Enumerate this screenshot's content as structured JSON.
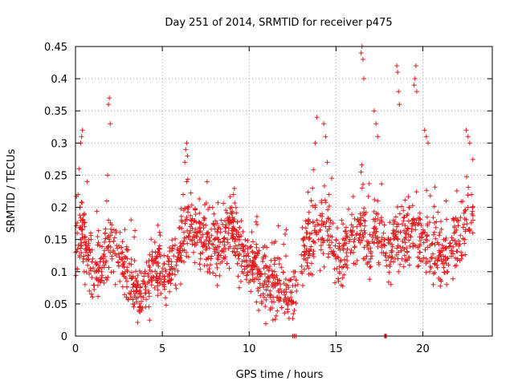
{
  "chart_data": {
    "type": "scatter",
    "title": "Day 251 of 2014, SRMTID for receiver p475",
    "xlabel": "GPS time / hours",
    "ylabel": "SRMTID / TECUs",
    "xlim": [
      0,
      24
    ],
    "ylim": [
      0,
      0.45
    ],
    "xticks": [
      0,
      5,
      10,
      15,
      20
    ],
    "xtick_labels": [
      "0",
      "5",
      "10",
      "15",
      "20"
    ],
    "yticks": [
      0,
      0.05,
      0.1,
      0.15,
      0.2,
      0.25,
      0.3,
      0.35,
      0.4,
      0.45
    ],
    "ytick_labels": [
      "0",
      "0.05",
      "0.1",
      "0.15",
      "0.2",
      "0.25",
      "0.3",
      "0.35",
      "0.4",
      "0.45"
    ],
    "grid": true,
    "marker": "+",
    "color": "#e41a1c",
    "series": [
      {
        "name": "SRMTID",
        "x": [
          0.0,
          0.1,
          0.15,
          0.2,
          0.25,
          0.3,
          0.35,
          0.4,
          0.45,
          0.5,
          0.55,
          0.6,
          0.7,
          0.8,
          0.9,
          1.0,
          1.1,
          1.2,
          1.3,
          1.4,
          1.5,
          1.6,
          1.7,
          1.8,
          1.85,
          1.9,
          2.0,
          2.1,
          2.2,
          2.3,
          2.5,
          2.7,
          2.9,
          3.0,
          3.2,
          3.4,
          3.5,
          3.6,
          3.7,
          3.8,
          3.9,
          4.0,
          4.2,
          4.4,
          4.6,
          4.8,
          5.0,
          5.2,
          5.4,
          5.6,
          5.8,
          6.0,
          6.1,
          6.2,
          6.3,
          6.4,
          6.5,
          6.6,
          6.8,
          7.0,
          7.2,
          7.4,
          7.6,
          7.8,
          8.0,
          8.2,
          8.4,
          8.6,
          8.8,
          9.0,
          9.1,
          9.2,
          9.4,
          9.6,
          9.8,
          10.0,
          10.2,
          10.4,
          10.6,
          10.8,
          11.0,
          11.2,
          11.4,
          11.6,
          11.8,
          12.0,
          12.2,
          12.4,
          12.6,
          12.8,
          13.0,
          13.2,
          13.4,
          13.6,
          13.8,
          14.0,
          14.2,
          14.4,
          14.6,
          14.8,
          15.0,
          15.2,
          15.4,
          15.6,
          15.8,
          16.0,
          16.2,
          16.4,
          16.5,
          16.6,
          16.8,
          17.0,
          17.2,
          17.4,
          17.6,
          17.8,
          18.0,
          18.2,
          18.4,
          18.5,
          18.6,
          18.8,
          19.0,
          19.2,
          19.4,
          19.6,
          19.8,
          20.0,
          20.2,
          20.4,
          20.6,
          20.8,
          21.0,
          21.2,
          21.4,
          21.6,
          21.8,
          22.0,
          22.2,
          22.4,
          22.6,
          22.8,
          12.5,
          12.6,
          12.7,
          17.8,
          17.85,
          17.9,
          0.3,
          0.35,
          0.4,
          1.9,
          1.95,
          2.0,
          6.35,
          6.4,
          6.45,
          16.45,
          16.5,
          16.55,
          16.6,
          18.5,
          18.55,
          18.6,
          18.65,
          19.5,
          19.55,
          19.6,
          19.65,
          20.1,
          20.2,
          20.3,
          14.3,
          14.4,
          14.5,
          13.8,
          13.9,
          17.2,
          17.3,
          17.4,
          22.5,
          22.6,
          22.7
        ],
        "y": [
          0.13,
          0.16,
          0.22,
          0.26,
          0.2,
          0.15,
          0.14,
          0.18,
          0.12,
          0.1,
          0.08,
          0.13,
          0.11,
          0.07,
          0.15,
          0.12,
          0.1,
          0.09,
          0.11,
          0.14,
          0.1,
          0.12,
          0.16,
          0.21,
          0.25,
          0.18,
          0.13,
          0.12,
          0.1,
          0.08,
          0.14,
          0.12,
          0.09,
          0.1,
          0.06,
          0.05,
          0.07,
          0.06,
          0.05,
          0.04,
          0.06,
          0.08,
          0.07,
          0.1,
          0.12,
          0.09,
          0.08,
          0.1,
          0.12,
          0.14,
          0.11,
          0.13,
          0.18,
          0.22,
          0.27,
          0.24,
          0.2,
          0.15,
          0.13,
          0.16,
          0.12,
          0.14,
          0.1,
          0.12,
          0.15,
          0.13,
          0.18,
          0.12,
          0.16,
          0.2,
          0.22,
          0.15,
          0.12,
          0.1,
          0.14,
          0.11,
          0.13,
          0.09,
          0.1,
          0.12,
          0.08,
          0.07,
          0.09,
          0.06,
          0.08,
          0.07,
          0.05,
          0.06,
          0.04,
          0.08,
          0.1,
          0.14,
          0.18,
          0.16,
          0.2,
          0.15,
          0.19,
          0.17,
          0.22,
          0.13,
          0.12,
          0.1,
          0.14,
          0.11,
          0.15,
          0.13,
          0.17,
          0.19,
          0.23,
          0.18,
          0.14,
          0.12,
          0.16,
          0.21,
          0.18,
          0.14,
          0.15,
          0.13,
          0.12,
          0.17,
          0.1,
          0.12,
          0.16,
          0.2,
          0.18,
          0.14,
          0.13,
          0.16,
          0.12,
          0.1,
          0.08,
          0.11,
          0.13,
          0.15,
          0.12,
          0.14,
          0.16,
          0.18,
          0.13,
          0.15,
          0.2,
          0.22,
          0.0,
          0.0,
          0.0,
          0.0,
          0.0,
          0.0,
          0.3,
          0.31,
          0.32,
          0.36,
          0.37,
          0.33,
          0.29,
          0.3,
          0.28,
          0.44,
          0.45,
          0.43,
          0.4,
          0.42,
          0.41,
          0.38,
          0.36,
          0.39,
          0.4,
          0.42,
          0.38,
          0.32,
          0.31,
          0.3,
          0.33,
          0.31,
          0.27,
          0.3,
          0.34,
          0.35,
          0.33,
          0.31,
          0.32,
          0.31,
          0.3
        ],
        "notes": "Dense scatter of roughly 2000 + markers; listed values are representative samples read from the plot; full point cloud is rendered with the same envelope."
      }
    ]
  }
}
